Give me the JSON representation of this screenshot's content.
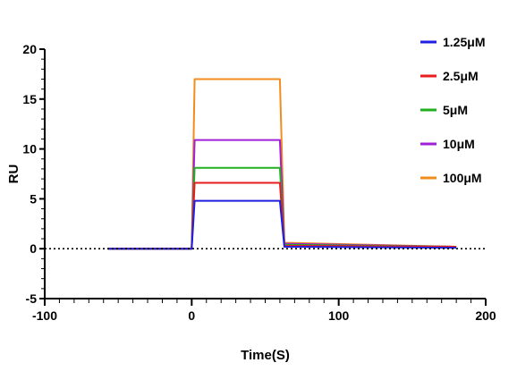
{
  "chart_data": {
    "type": "line",
    "xlabel": "Time(S)",
    "ylabel": "RU",
    "xlim": [
      -100,
      200
    ],
    "ylim": [
      -5,
      20
    ],
    "xticks": [
      -100,
      0,
      100,
      200
    ],
    "yticks": [
      -5,
      0,
      5,
      10,
      15,
      20
    ],
    "zero_reference_line": "dotted",
    "grid": false,
    "legend_position": "top-right",
    "association_start": 0,
    "dissociation_start": 60,
    "series": [
      {
        "name": "1.25μM",
        "color": "#1f1fe0",
        "x": [
          -57,
          0,
          2,
          60,
          63,
          180
        ],
        "y": [
          0,
          0,
          4.8,
          4.8,
          0.2,
          0.1
        ]
      },
      {
        "name": "2.5μM",
        "color": "#e81e1e",
        "x": [
          -57,
          0,
          2,
          60,
          63,
          180
        ],
        "y": [
          0,
          0,
          6.6,
          6.6,
          0.3,
          0.2
        ]
      },
      {
        "name": "5μM",
        "color": "#22b022",
        "x": [
          -57,
          0,
          2,
          60,
          63,
          180
        ],
        "y": [
          0,
          0,
          8.1,
          8.1,
          0.4,
          0.2
        ]
      },
      {
        "name": "10μM",
        "color": "#a020d8",
        "x": [
          -57,
          0,
          2,
          60,
          63,
          180
        ],
        "y": [
          0,
          0,
          10.9,
          10.9,
          0.5,
          0.2
        ]
      },
      {
        "name": "100μM",
        "color": "#f28c1c",
        "x": [
          -57,
          0,
          2,
          60,
          63,
          180
        ],
        "y": [
          0,
          0,
          17.0,
          17.0,
          0.6,
          0.2
        ]
      }
    ]
  }
}
